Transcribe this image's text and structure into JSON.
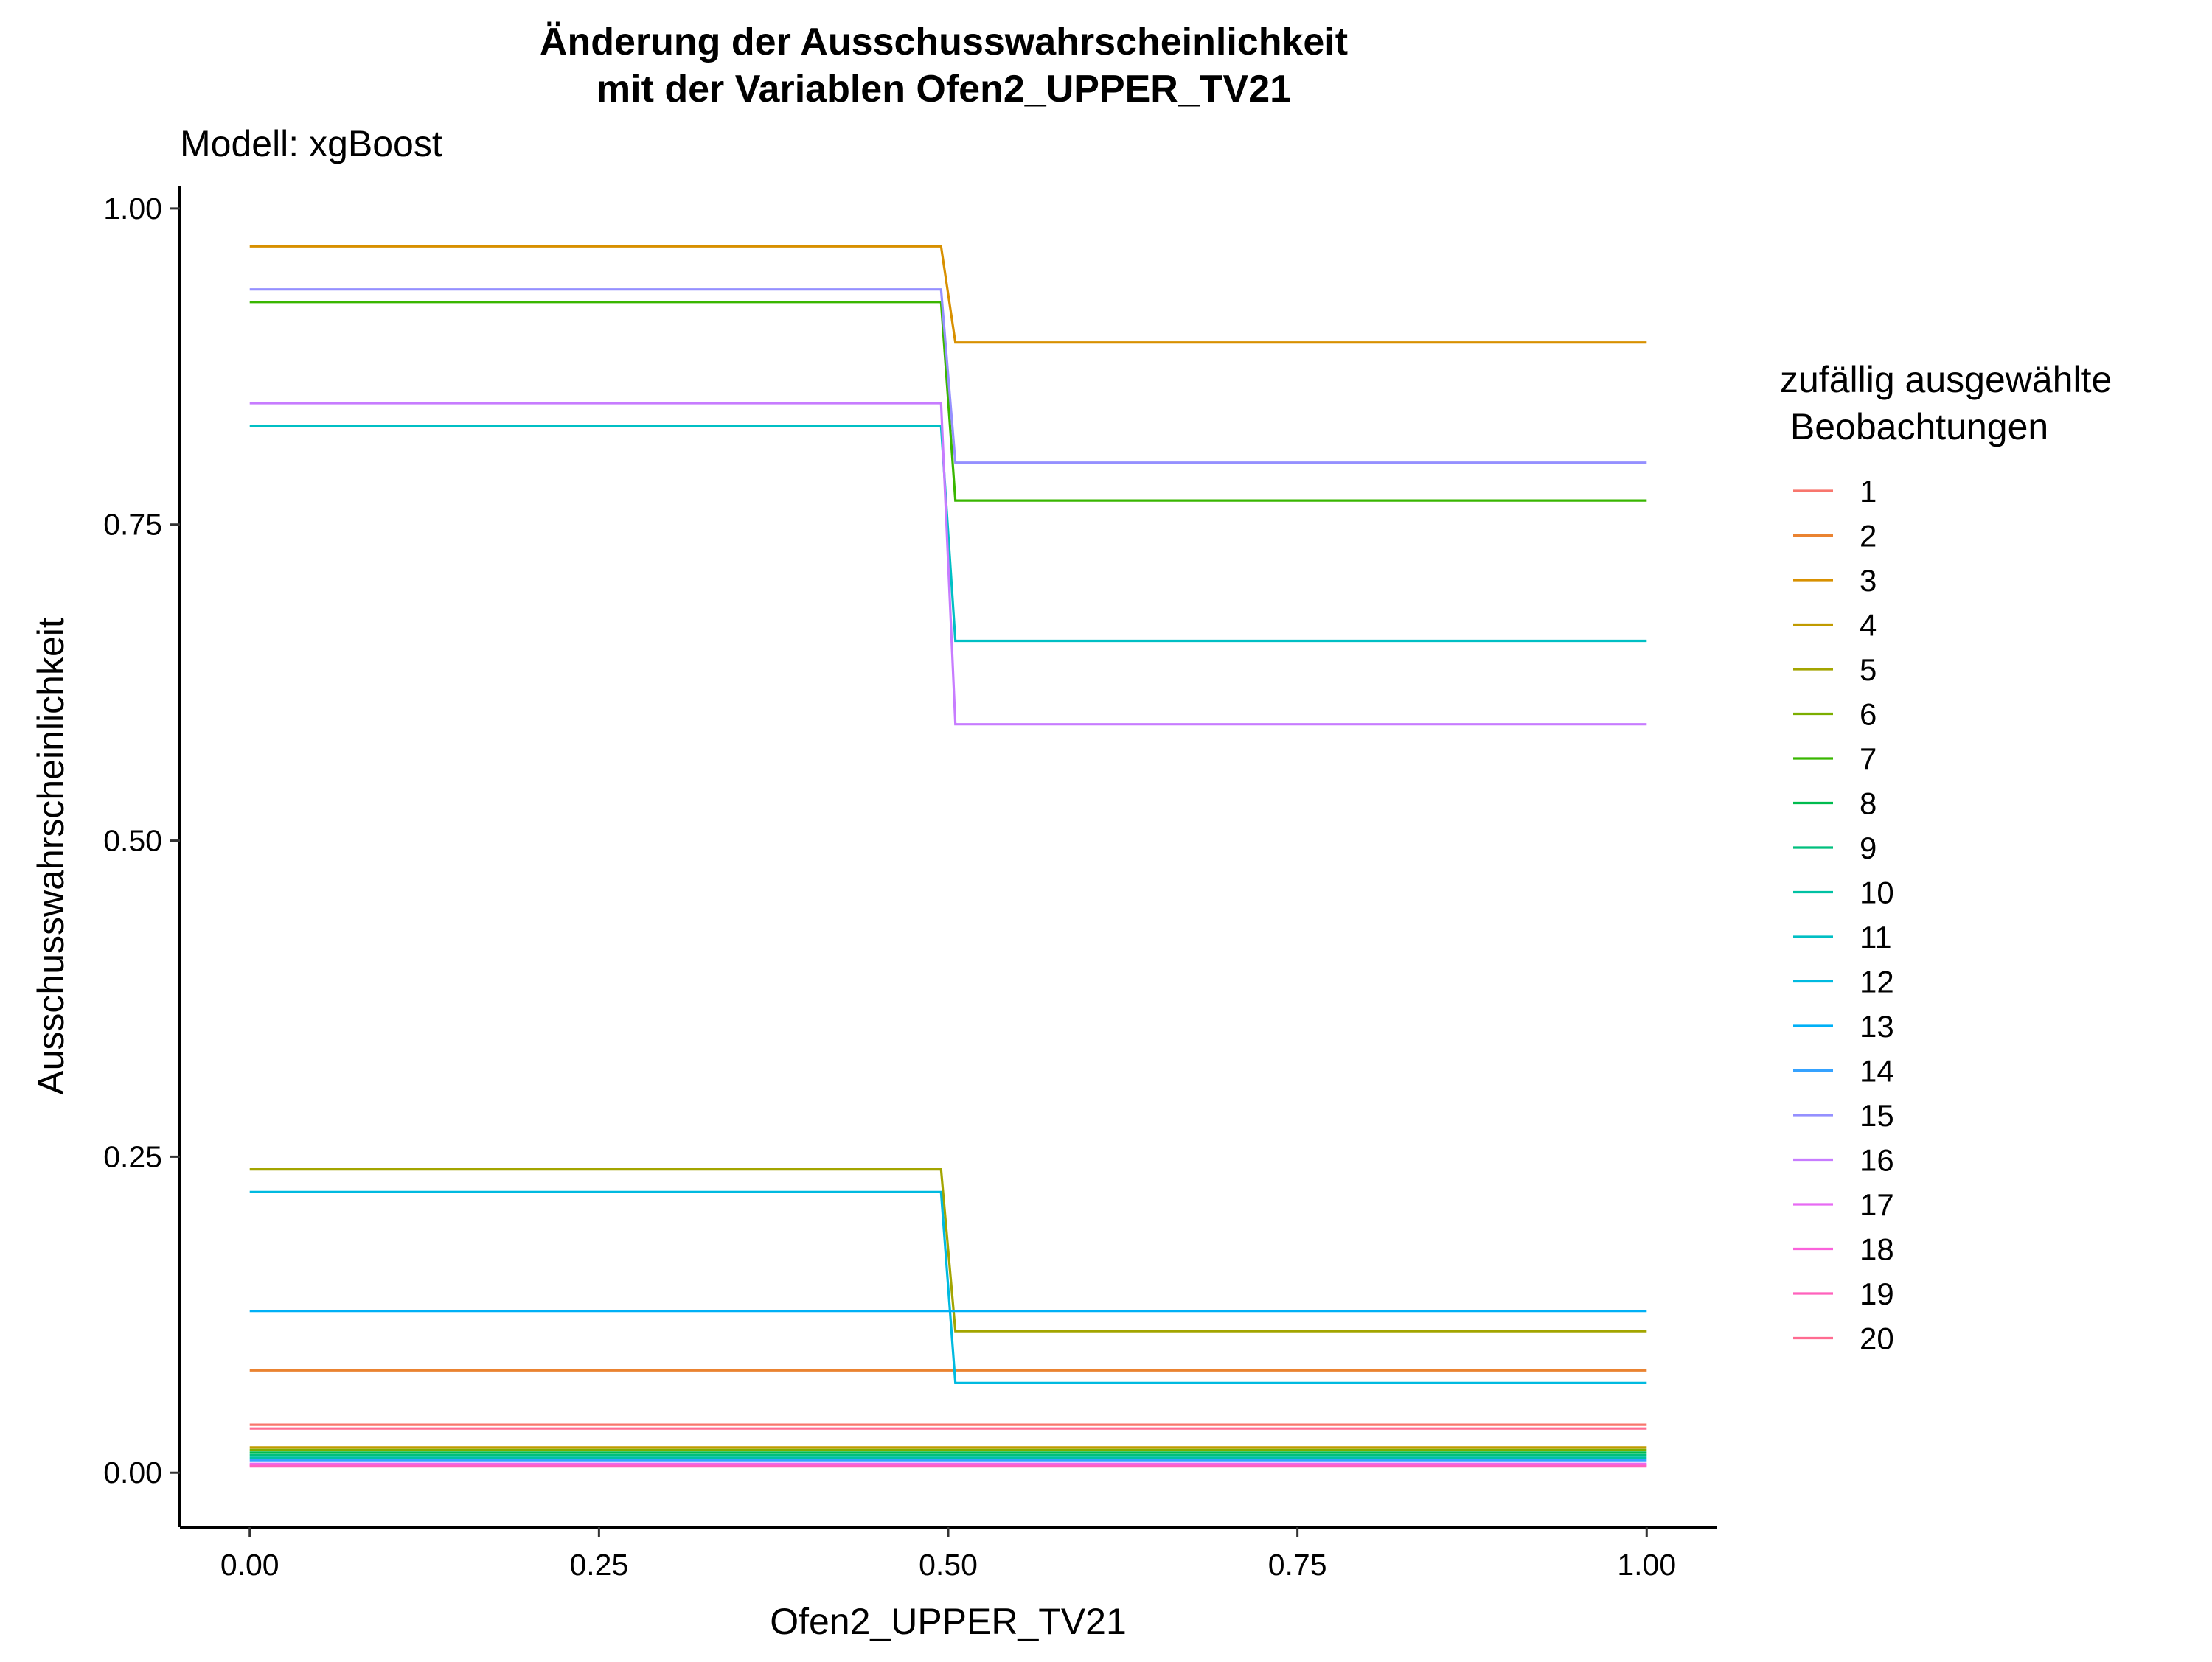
{
  "chart_data": {
    "type": "line",
    "title_line1": "Änderung der Ausschusswahrscheinlichkeit",
    "title_line2": "mit der Variablen Ofen2_UPPER_TV21",
    "subtitle": "Modell: xgBoost",
    "xlabel": "Ofen2_UPPER_TV21",
    "ylabel": "Ausschusswahrscheinlichkeit",
    "xlim": [
      -0.05,
      1.05
    ],
    "ylim": [
      -0.043,
      1.018
    ],
    "x_ticks": [
      0.0,
      0.25,
      0.5,
      0.75,
      1.0
    ],
    "x_tick_labels": [
      "0.00",
      "0.25",
      "0.50",
      "0.75",
      "1.00"
    ],
    "y_ticks": [
      0.0,
      0.25,
      0.5,
      0.75,
      1.0
    ],
    "y_tick_labels": [
      "0.00",
      "0.25",
      "0.50",
      "0.75",
      "1.00"
    ],
    "grid": false,
    "legend_title_line1": "zufällig ausgewählte",
    "legend_title_line2": " Beobachtungen",
    "legend_position": "right",
    "x": [
      0.0,
      0.4949,
      0.5051,
      1.0
    ],
    "series": [
      {
        "name": "1",
        "color": "#F8766D",
        "values": [
          0.038,
          0.038,
          0.038,
          0.038
        ]
      },
      {
        "name": "2",
        "color": "#EA8331",
        "values": [
          0.081,
          0.081,
          0.081,
          0.081
        ]
      },
      {
        "name": "3",
        "color": "#D89000",
        "values": [
          0.97,
          0.97,
          0.894,
          0.894
        ]
      },
      {
        "name": "4",
        "color": "#C09B00",
        "values": [
          0.02,
          0.02,
          0.02,
          0.02
        ]
      },
      {
        "name": "5",
        "color": "#A3A500",
        "values": [
          0.24,
          0.24,
          0.112,
          0.112
        ]
      },
      {
        "name": "6",
        "color": "#7CAE00",
        "values": [
          0.018,
          0.018,
          0.018,
          0.018
        ]
      },
      {
        "name": "7",
        "color": "#39B600",
        "values": [
          0.926,
          0.926,
          0.769,
          0.769
        ]
      },
      {
        "name": "8",
        "color": "#00BB4E",
        "values": [
          0.016,
          0.016,
          0.016,
          0.016
        ]
      },
      {
        "name": "9",
        "color": "#00BF7D",
        "values": [
          0.014,
          0.014,
          0.014,
          0.014
        ]
      },
      {
        "name": "10",
        "color": "#00C1A3",
        "values": [
          0.012,
          0.012,
          0.012,
          0.012
        ]
      },
      {
        "name": "11",
        "color": "#00BFC4",
        "values": [
          0.828,
          0.828,
          0.658,
          0.658
        ]
      },
      {
        "name": "12",
        "color": "#00BAE0",
        "values": [
          0.222,
          0.222,
          0.071,
          0.071
        ]
      },
      {
        "name": "13",
        "color": "#00B0F6",
        "values": [
          0.128,
          0.128,
          0.128,
          0.128
        ]
      },
      {
        "name": "14",
        "color": "#35A2FF",
        "values": [
          0.01,
          0.01,
          0.01,
          0.01
        ]
      },
      {
        "name": "15",
        "color": "#9590FF",
        "values": [
          0.936,
          0.936,
          0.799,
          0.799
        ]
      },
      {
        "name": "16",
        "color": "#C77CFF",
        "values": [
          0.846,
          0.846,
          0.592,
          0.592
        ]
      },
      {
        "name": "17",
        "color": "#E76BF3",
        "values": [
          0.007,
          0.007,
          0.007,
          0.007
        ]
      },
      {
        "name": "18",
        "color": "#FA62DB",
        "values": [
          0.006,
          0.006,
          0.006,
          0.006
        ]
      },
      {
        "name": "19",
        "color": "#FF62BC",
        "values": [
          0.005,
          0.005,
          0.005,
          0.005
        ]
      },
      {
        "name": "20",
        "color": "#FF6C91",
        "values": [
          0.035,
          0.035,
          0.035,
          0.035
        ]
      }
    ]
  }
}
